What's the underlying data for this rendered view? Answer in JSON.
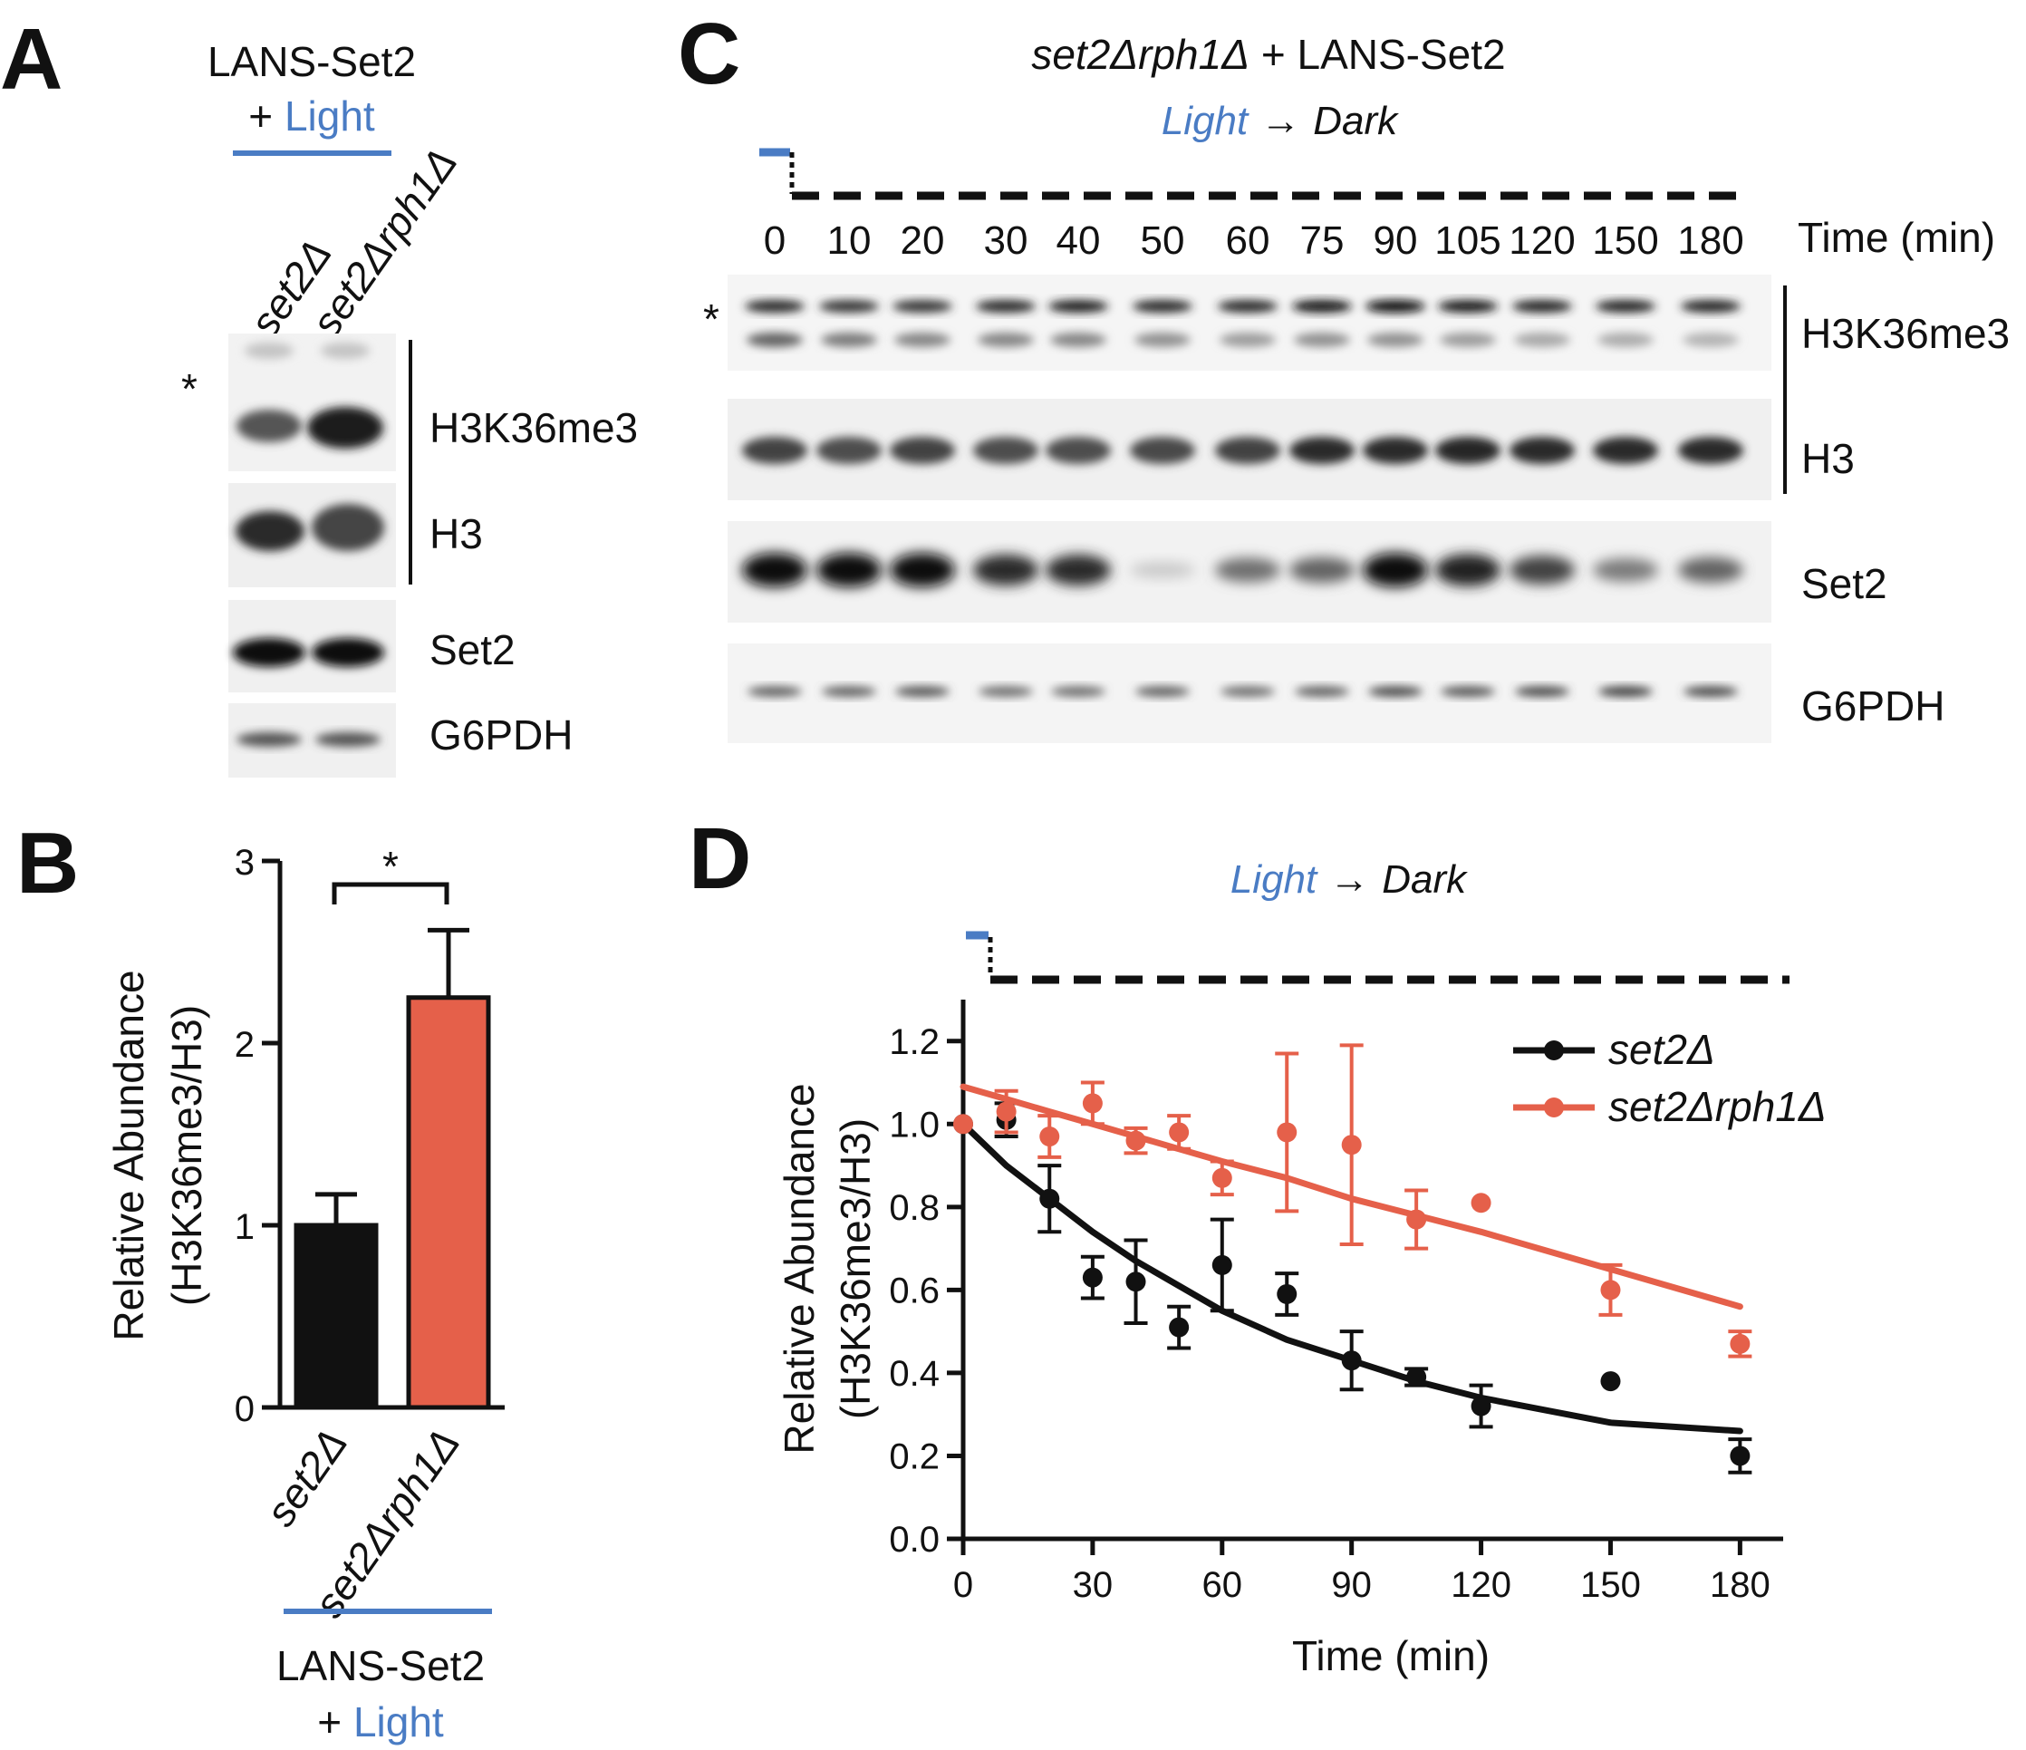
{
  "panels": {
    "A": {
      "letter": "A",
      "header_line1": "LANS-Set2",
      "header_plus": "+ ",
      "header_light": "Light",
      "lanes": [
        "set2Δ",
        "set2Δrph1Δ"
      ],
      "asterisk": "*",
      "blot_labels": [
        "H3K36me3",
        "H3",
        "Set2",
        "G6PDH"
      ]
    },
    "B": {
      "letter": "B",
      "ylabel_line1": "Relative Abundance",
      "ylabel_line2": "(H3K36me3/H3)",
      "significance": "*",
      "footer_line1": "LANS-Set2",
      "footer_plus": "+ ",
      "footer_light": "Light"
    },
    "C": {
      "letter": "C",
      "title_strain": "set2Δrph1Δ",
      "title_rest": " + LANS-Set2",
      "light_label": "Light",
      "arrow": "→",
      "dark_label": "Dark",
      "time_points": [
        "0",
        "10",
        "20",
        "30",
        "40",
        "50",
        "60",
        "75",
        "90",
        "105",
        "120",
        "150",
        "180"
      ],
      "time_label": "Time (min)",
      "asterisk": "*",
      "blot_labels": [
        "H3K36me3",
        "H3",
        "Set2",
        "G6PDH"
      ]
    },
    "D": {
      "letter": "D",
      "light_label": "Light",
      "arrow": "→",
      "dark_label": "Dark",
      "ylabel_line1": "Relative Abundance",
      "ylabel_line2": "(H3K36me3/H3)",
      "xlabel": "Time (min)"
    }
  },
  "colors": {
    "black": "#111111",
    "orange": "#e5604a",
    "blue": "#4a7cc4"
  },
  "chart_data": [
    {
      "panel": "B",
      "type": "bar",
      "categories": [
        "set2Δ",
        "set2Δrph1Δ"
      ],
      "values": [
        1.0,
        2.25
      ],
      "errors": [
        0.17,
        0.37
      ],
      "colors": [
        "#111111",
        "#e5604a"
      ],
      "ylabel": "Relative Abundance (H3K36me3/H3)",
      "ylim": [
        0,
        3
      ],
      "yticks": [
        0,
        1,
        2,
        3
      ]
    },
    {
      "panel": "D",
      "type": "scatter",
      "xlabel": "Time (min)",
      "ylabel": "Relative Abundance (H3K36me3/H3)",
      "xlim": [
        0,
        190
      ],
      "ylim": [
        0,
        1.3
      ],
      "xticks": [
        0,
        30,
        60,
        90,
        120,
        150,
        180
      ],
      "yticks": [
        "0.0",
        "0.2",
        "0.4",
        "0.6",
        "0.8",
        "1.0",
        "1.2"
      ],
      "legend_position": "top-right",
      "series": [
        {
          "name": "set2Δ",
          "color": "#111111",
          "x": [
            0,
            10,
            20,
            30,
            40,
            50,
            60,
            75,
            90,
            105,
            120,
            150,
            180
          ],
          "y": [
            1.0,
            1.01,
            0.82,
            0.63,
            0.62,
            0.51,
            0.66,
            0.59,
            0.43,
            0.39,
            0.32,
            0.38,
            0.2
          ],
          "errors": [
            0,
            0.04,
            0.08,
            0.05,
            0.1,
            0.05,
            0.11,
            0.05,
            0.07,
            0.02,
            0.05,
            0,
            0.04
          ],
          "fit": "exponential decay",
          "fit_y": [
            1.0,
            0.9,
            0.82,
            0.74,
            0.67,
            0.61,
            0.55,
            0.48,
            0.43,
            0.38,
            0.34,
            0.28,
            0.26
          ]
        },
        {
          "name": "set2Δrph1Δ",
          "color": "#e5604a",
          "x": [
            0,
            10,
            20,
            30,
            40,
            50,
            60,
            75,
            90,
            105,
            120,
            150,
            180
          ],
          "y": [
            1.0,
            1.03,
            0.97,
            1.05,
            0.96,
            0.98,
            0.87,
            0.98,
            0.95,
            0.77,
            0.81,
            0.6,
            0.47
          ],
          "errors": [
            0,
            0.05,
            0.05,
            0.05,
            0.03,
            0.04,
            0.04,
            0.19,
            0.24,
            0.07,
            0,
            0.06,
            0.03
          ],
          "fit": "linear",
          "fit_y": [
            1.09,
            1.06,
            1.03,
            1.0,
            0.97,
            0.94,
            0.91,
            0.87,
            0.82,
            0.78,
            0.74,
            0.65,
            0.56
          ]
        }
      ]
    }
  ]
}
